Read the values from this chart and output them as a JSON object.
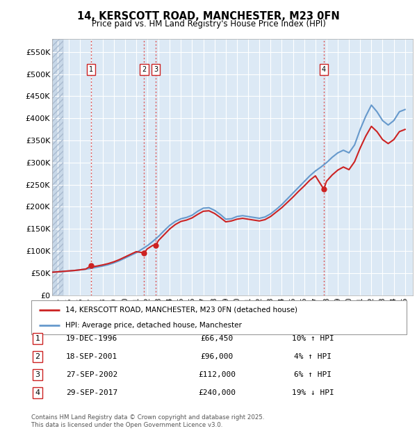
{
  "title": "14, KERSCOTT ROAD, MANCHESTER, M23 0FN",
  "subtitle": "Price paid vs. HM Land Registry's House Price Index (HPI)",
  "ylabel_ticks": [
    "£0",
    "£50K",
    "£100K",
    "£150K",
    "£200K",
    "£250K",
    "£300K",
    "£350K",
    "£400K",
    "£450K",
    "£500K",
    "£550K"
  ],
  "ytick_values": [
    0,
    50000,
    100000,
    150000,
    200000,
    250000,
    300000,
    350000,
    400000,
    450000,
    500000,
    550000
  ],
  "ylim": [
    0,
    580000
  ],
  "xmin": 1993.5,
  "xmax": 2025.7,
  "bg_color": "#dce9f5",
  "grid_color": "#ffffff",
  "sale_dates_num": [
    1996.97,
    2001.72,
    2002.74,
    2017.75
  ],
  "sale_prices": [
    66450,
    96000,
    112000,
    240000
  ],
  "sale_labels": [
    "1",
    "2",
    "3",
    "4"
  ],
  "vline_color": "#dd4444",
  "red_line_color": "#cc2222",
  "blue_line_color": "#6699cc",
  "legend_label_red": "14, KERSCOTT ROAD, MANCHESTER, M23 0FN (detached house)",
  "legend_label_blue": "HPI: Average price, detached house, Manchester",
  "table_rows": [
    [
      "1",
      "19-DEC-1996",
      "£66,450",
      "10% ↑ HPI"
    ],
    [
      "2",
      "18-SEP-2001",
      "£96,000",
      "4% ↑ HPI"
    ],
    [
      "3",
      "27-SEP-2002",
      "£112,000",
      "6% ↑ HPI"
    ],
    [
      "4",
      "29-SEP-2017",
      "£240,000",
      "19% ↓ HPI"
    ]
  ],
  "footer": "Contains HM Land Registry data © Crown copyright and database right 2025.\nThis data is licensed under the Open Government Licence v3.0.",
  "hpi_years": [
    1993.5,
    1994.0,
    1994.5,
    1995.0,
    1995.5,
    1996.0,
    1996.5,
    1997.0,
    1997.5,
    1998.0,
    1998.5,
    1999.0,
    1999.5,
    2000.0,
    2000.5,
    2001.0,
    2001.5,
    2002.0,
    2002.5,
    2003.0,
    2003.5,
    2004.0,
    2004.5,
    2005.0,
    2005.5,
    2006.0,
    2006.5,
    2007.0,
    2007.5,
    2008.0,
    2008.5,
    2009.0,
    2009.5,
    2010.0,
    2010.5,
    2011.0,
    2011.5,
    2012.0,
    2012.5,
    2013.0,
    2013.5,
    2014.0,
    2014.5,
    2015.0,
    2015.5,
    2016.0,
    2016.5,
    2017.0,
    2017.5,
    2018.0,
    2018.5,
    2019.0,
    2019.5,
    2020.0,
    2020.5,
    2021.0,
    2021.5,
    2022.0,
    2022.5,
    2023.0,
    2023.5,
    2024.0,
    2024.5,
    2025.0
  ],
  "hpi_values": [
    52000,
    53000,
    54000,
    55000,
    56000,
    57500,
    59000,
    61000,
    63500,
    66000,
    69000,
    73000,
    78000,
    84000,
    90000,
    96000,
    104000,
    112000,
    122000,
    133000,
    146000,
    158000,
    167000,
    173000,
    176000,
    181000,
    190000,
    197000,
    198000,
    192000,
    183000,
    172000,
    173000,
    178000,
    180000,
    178000,
    176000,
    174000,
    177000,
    184000,
    194000,
    205000,
    218000,
    231000,
    244000,
    257000,
    270000,
    281000,
    290000,
    300000,
    312000,
    322000,
    328000,
    322000,
    340000,
    375000,
    405000,
    430000,
    415000,
    395000,
    385000,
    395000,
    415000,
    420000
  ],
  "price_years": [
    1993.5,
    1994.0,
    1994.5,
    1995.0,
    1995.5,
    1996.0,
    1996.5,
    1996.97,
    1997.0,
    1997.5,
    1998.0,
    1998.5,
    1999.0,
    1999.5,
    2000.0,
    2000.5,
    2001.0,
    2001.72,
    2002.0,
    2002.5,
    2002.74,
    2003.0,
    2003.5,
    2004.0,
    2004.5,
    2005.0,
    2005.5,
    2006.0,
    2006.5,
    2007.0,
    2007.5,
    2008.0,
    2008.5,
    2009.0,
    2009.5,
    2010.0,
    2010.5,
    2011.0,
    2011.5,
    2012.0,
    2012.5,
    2013.0,
    2013.5,
    2014.0,
    2014.5,
    2015.0,
    2015.5,
    2016.0,
    2016.5,
    2017.0,
    2017.75,
    2018.0,
    2018.5,
    2019.0,
    2019.5,
    2020.0,
    2020.5,
    2021.0,
    2021.5,
    2022.0,
    2022.5,
    2023.0,
    2023.5,
    2024.0,
    2024.5,
    2025.0
  ],
  "price_values": [
    52000,
    53000,
    54000,
    55000,
    56000,
    57500,
    59200,
    66450,
    64000,
    66000,
    68500,
    71500,
    75500,
    80500,
    86500,
    92500,
    98500,
    96000,
    105000,
    113000,
    112000,
    124000,
    137000,
    150000,
    160000,
    167000,
    170000,
    175000,
    183000,
    190000,
    191000,
    185000,
    176000,
    166000,
    168000,
    172000,
    174000,
    172000,
    170000,
    168000,
    171000,
    178000,
    188000,
    198000,
    210000,
    222000,
    235000,
    247000,
    260000,
    270000,
    240000,
    258000,
    272000,
    283000,
    290000,
    284000,
    302000,
    333000,
    360000,
    382000,
    370000,
    352000,
    343000,
    352000,
    370000,
    375000
  ]
}
